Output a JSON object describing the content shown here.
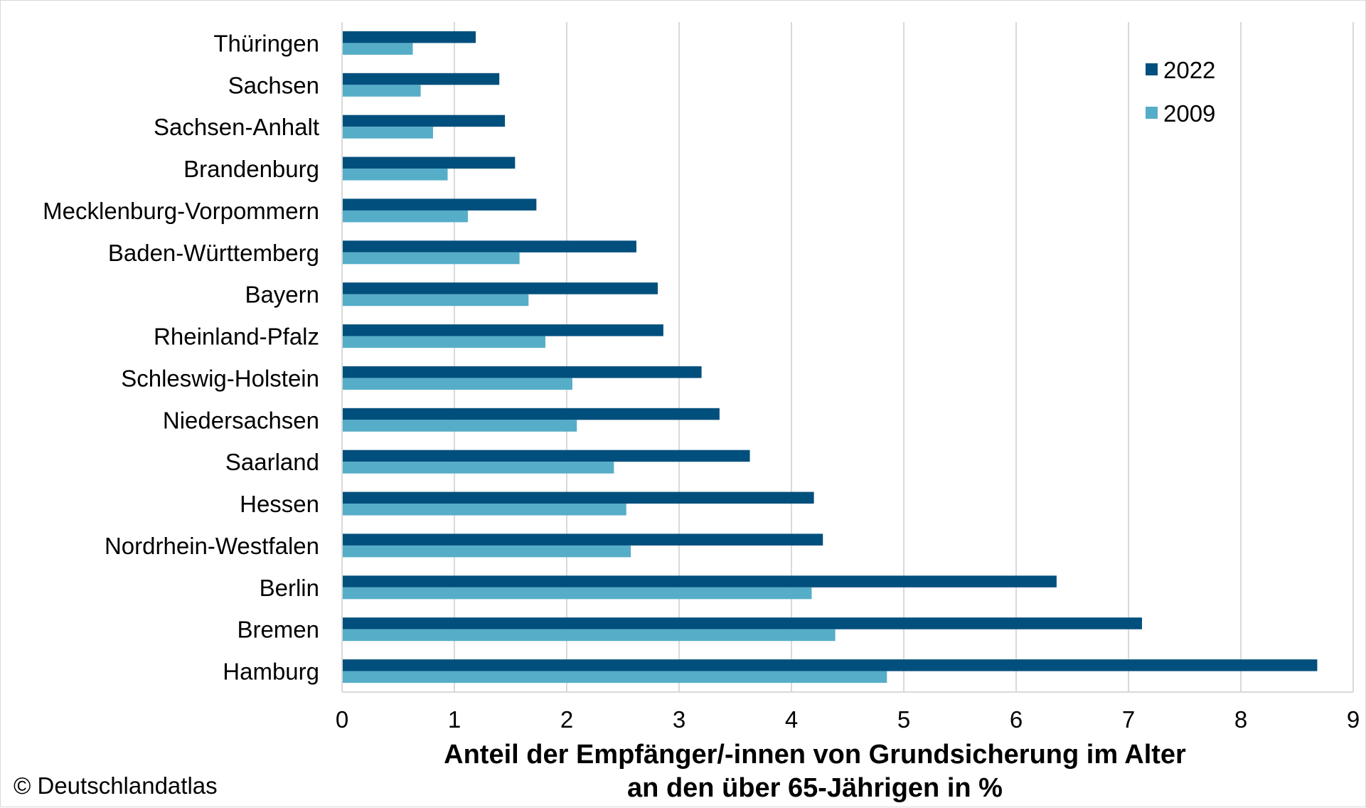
{
  "chart_data": {
    "type": "bar",
    "orientation": "horizontal",
    "categories": [
      "Thüringen",
      "Sachsen",
      "Sachsen-Anhalt",
      "Brandenburg",
      "Mecklenburg-Vorpommern",
      "Baden-Württemberg",
      "Bayern",
      "Rheinland-Pfalz",
      "Schleswig-Holstein",
      "Niedersachsen",
      "Saarland",
      "Hessen",
      "Nordrhein-Westfalen",
      "Berlin",
      "Bremen",
      "Hamburg"
    ],
    "series": [
      {
        "name": "2022",
        "color": "#004f7d",
        "values": [
          1.19,
          1.4,
          1.45,
          1.54,
          1.73,
          2.62,
          2.81,
          2.86,
          3.2,
          3.36,
          3.63,
          4.2,
          4.28,
          6.36,
          7.12,
          8.68
        ]
      },
      {
        "name": "2009",
        "color": "#56adc8",
        "values": [
          0.63,
          0.7,
          0.81,
          0.94,
          1.12,
          1.58,
          1.66,
          1.81,
          2.05,
          2.09,
          2.42,
          2.53,
          2.57,
          4.18,
          4.39,
          4.85
        ]
      }
    ],
    "xlim": [
      0,
      9
    ],
    "xticks": [
      0,
      1,
      2,
      3,
      4,
      5,
      6,
      7,
      8,
      9
    ],
    "xlabel_lines": [
      "Anteil der Empfänger/-innen von Grundsicherung im Alter",
      "an den über 65-Jährigen in %"
    ],
    "grid": "vertical",
    "legend_position": "top-right"
  },
  "footer": {
    "copyright": "© Deutschlandatlas"
  }
}
